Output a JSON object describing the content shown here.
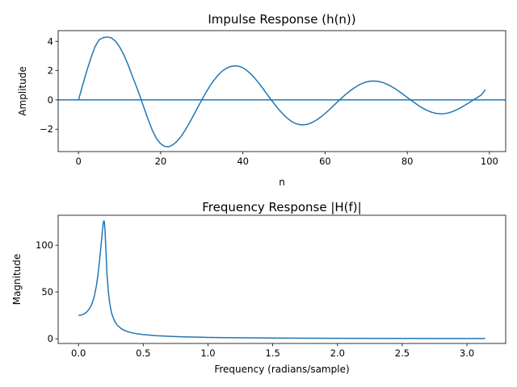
{
  "chart_data": [
    {
      "type": "line",
      "title": "Impulse Response (h(n))",
      "xlabel": "n",
      "ylabel": "Amplitude",
      "xlim": [
        -4.95,
        103.95
      ],
      "ylim": [
        -3.53,
        4.73
      ],
      "xticks": [
        0,
        20,
        40,
        60,
        80,
        100
      ],
      "xtick_labels": [
        "0",
        "20",
        "40",
        "60",
        "80",
        "100"
      ],
      "yticks": [
        -2,
        0,
        2,
        4
      ],
      "ytick_labels": [
        "−2",
        "0",
        "2",
        "4"
      ],
      "grid": false,
      "baseline": 0,
      "color": "#1f77b4",
      "series": [
        {
          "x": [
            0,
            1,
            2,
            3,
            4,
            5,
            6,
            7,
            8,
            9,
            10,
            11,
            12,
            13,
            14,
            15,
            16,
            17,
            18,
            19,
            20,
            21,
            22,
            23,
            24,
            25,
            26,
            27,
            28,
            29,
            30,
            31,
            32,
            33,
            34,
            35,
            36,
            37,
            38,
            39,
            40,
            41,
            42,
            43,
            44,
            45,
            46,
            47,
            48,
            49,
            50,
            51,
            52,
            53,
            54,
            55,
            56,
            57,
            58,
            59,
            60,
            61,
            62,
            63,
            64,
            65,
            66,
            67,
            68,
            69,
            70,
            71,
            72,
            73,
            74,
            75,
            76,
            77,
            78,
            79,
            80,
            81,
            82,
            83,
            84,
            85,
            86,
            87,
            88,
            89,
            90,
            91,
            92,
            93,
            94,
            95,
            96,
            97,
            98,
            99
          ],
          "values": [
            0.0,
            1.0,
            1.961,
            2.846,
            3.62,
            4.103,
            4.249,
            4.3,
            4.235,
            4.012,
            3.62,
            3.1,
            2.45,
            1.7,
            0.98,
            0.23,
            -0.6,
            -1.38,
            -2.1,
            -2.65,
            -3.0,
            -3.18,
            -3.2,
            -3.06,
            -2.82,
            -2.48,
            -2.05,
            -1.57,
            -1.05,
            -0.52,
            0.0,
            0.5,
            0.96,
            1.36,
            1.7,
            1.97,
            2.16,
            2.28,
            2.33,
            2.3,
            2.2,
            2.0,
            1.75,
            1.45,
            1.1,
            0.73,
            0.34,
            -0.04,
            -0.4,
            -0.74,
            -1.04,
            -1.3,
            -1.5,
            -1.63,
            -1.7,
            -1.7,
            -1.64,
            -1.52,
            -1.36,
            -1.16,
            -0.93,
            -0.68,
            -0.41,
            -0.14,
            0.12,
            0.37,
            0.6,
            0.8,
            0.98,
            1.12,
            1.22,
            1.28,
            1.29,
            1.26,
            1.19,
            1.08,
            0.94,
            0.77,
            0.58,
            0.38,
            0.17,
            -0.04,
            -0.24,
            -0.44,
            -0.6,
            -0.74,
            -0.85,
            -0.92,
            -0.95,
            -0.94,
            -0.89,
            -0.8,
            -0.68,
            -0.54,
            -0.37,
            -0.2,
            -0.02,
            0.16,
            0.33,
            0.7
          ]
        }
      ]
    },
    {
      "type": "line",
      "title": "Frequency Response |H(f)|",
      "xlabel": "Frequency (radians/sample)",
      "ylabel": "Magnitude",
      "xlim": [
        -0.157,
        3.299
      ],
      "ylim": [
        -5,
        132
      ],
      "xticks": [
        0,
        0.5,
        1.0,
        1.5,
        2.0,
        2.5,
        3.0
      ],
      "xtick_labels": [
        "0.0",
        "0.5",
        "1.0",
        "1.5",
        "2.0",
        "2.5",
        "3.0"
      ],
      "yticks": [
        0,
        50,
        100
      ],
      "ytick_labels": [
        "0",
        "50",
        "100"
      ],
      "grid": false,
      "color": "#1f77b4",
      "series": [
        {
          "x": [
            0.0,
            0.02,
            0.04,
            0.06,
            0.08,
            0.1,
            0.12,
            0.14,
            0.15,
            0.16,
            0.17,
            0.18,
            0.185,
            0.19,
            0.195,
            0.2,
            0.205,
            0.21,
            0.215,
            0.22,
            0.23,
            0.24,
            0.25,
            0.26,
            0.28,
            0.3,
            0.33,
            0.36,
            0.4,
            0.45,
            0.5,
            0.6,
            0.7,
            0.8,
            1.0,
            1.2,
            1.5,
            2.0,
            2.5,
            3.0,
            3.14
          ],
          "values": [
            25,
            25.3,
            26.3,
            28.2,
            31.3,
            36,
            44,
            58,
            68,
            80,
            94,
            108,
            116,
            122,
            126,
            125,
            115,
            100,
            84,
            70,
            51,
            39,
            31,
            25.5,
            18.5,
            14.5,
            10.8,
            8.6,
            6.8,
            5.4,
            4.5,
            3.3,
            2.6,
            2.1,
            1.5,
            1.1,
            0.8,
            0.5,
            0.35,
            0.28,
            0.27
          ]
        }
      ]
    }
  ]
}
